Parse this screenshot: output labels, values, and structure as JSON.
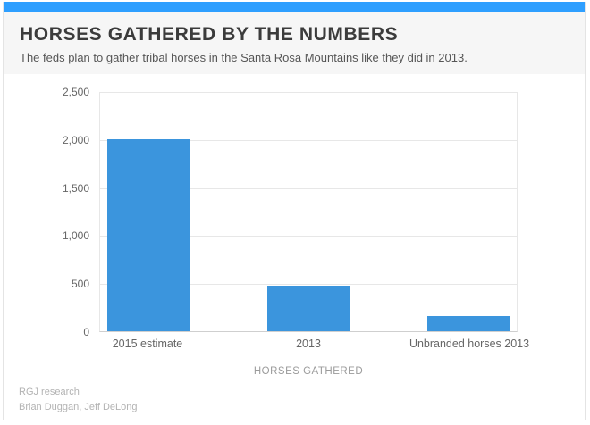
{
  "header": {
    "title": "HORSES GATHERED BY THE NUMBERS",
    "subtitle": "The feds plan to gather tribal horses in the Santa Rosa Mountains like they did in 2013."
  },
  "chart_data": {
    "type": "bar",
    "categories": [
      "2015 estimate",
      "2013",
      "Unbranded horses 2013"
    ],
    "values": [
      2000,
      470,
      155
    ],
    "title": "",
    "xlabel": "HORSES GATHERED",
    "ylabel": "",
    "ylim": [
      0,
      2500
    ],
    "ytick_interval": 500,
    "ytick_labels": [
      "0",
      "500",
      "1,000",
      "1,500",
      "2,000",
      "2,500"
    ],
    "grid": true,
    "legend": "none",
    "bar_color": "#3b95dd"
  },
  "footer": {
    "credit1": "RGJ research",
    "credit2": "Brian Duggan, Jeff DeLong"
  },
  "colors": {
    "accent_strip": "#2e9fff",
    "bar": "#3b95dd",
    "header_bg": "#f6f6f6",
    "grid": "#e7e7e7",
    "axis": "#cfcfcf"
  }
}
